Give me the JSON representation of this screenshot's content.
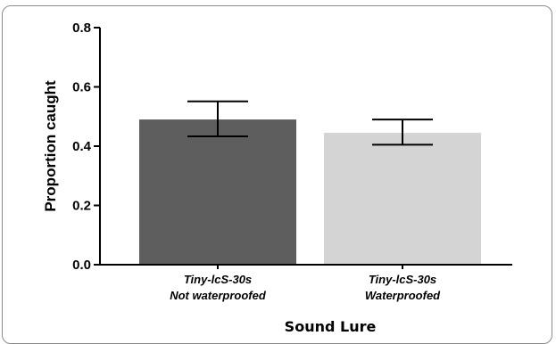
{
  "chart_data": {
    "type": "bar",
    "categories": [
      [
        "Tiny-lcS-30s",
        "Not waterproofed"
      ],
      [
        "Tiny-lcS-30s",
        "Waterproofed"
      ]
    ],
    "values": [
      0.49,
      0.445
    ],
    "error_low": [
      0.433,
      0.405
    ],
    "error_high": [
      0.551,
      0.49
    ],
    "bar_colors": [
      "#5e5e5e",
      "#d4d4d4"
    ],
    "xlabel": "Sound Lure",
    "ylabel": "Proportion caught",
    "ylim": [
      0,
      0.8
    ],
    "yticks": [
      "0.0",
      "0.2",
      "0.4",
      "0.6",
      "0.8"
    ],
    "ytick_values": [
      0,
      0.2,
      0.4,
      0.6,
      0.8
    ],
    "grid": false,
    "legend": "none"
  }
}
